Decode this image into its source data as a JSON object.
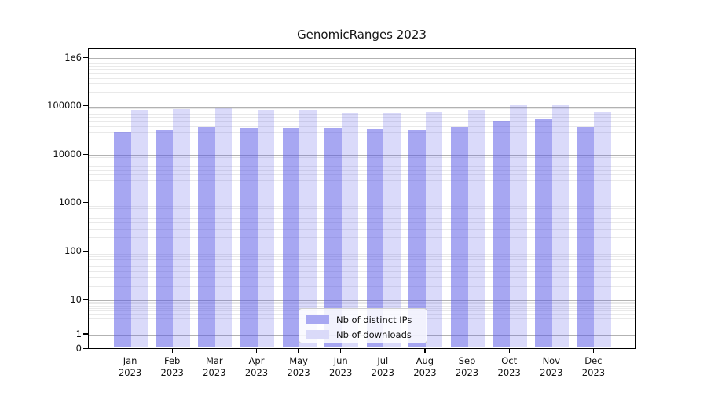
{
  "title": "GenomicRanges 2023",
  "chart_data": {
    "type": "bar",
    "title": "GenomicRanges 2023",
    "xlabel": "",
    "ylabel": "",
    "yscale": "symlog",
    "ylim": [
      0,
      1500000
    ],
    "grid": true,
    "legend_position": "lower center",
    "yticks": [
      {
        "label": "1e6",
        "value": 1000000
      },
      {
        "label": "100000",
        "value": 100000
      },
      {
        "label": "10000",
        "value": 10000
      },
      {
        "label": "1000",
        "value": 1000
      },
      {
        "label": "100",
        "value": 100
      },
      {
        "label": "10",
        "value": 10
      },
      {
        "label": "1",
        "value": 1
      },
      {
        "label": "0",
        "value": 0
      }
    ],
    "xticks": [
      {
        "month": "Jan",
        "year": "2023"
      },
      {
        "month": "Feb",
        "year": "2023"
      },
      {
        "month": "Mar",
        "year": "2023"
      },
      {
        "month": "Apr",
        "year": "2023"
      },
      {
        "month": "May",
        "year": "2023"
      },
      {
        "month": "Jun",
        "year": "2023"
      },
      {
        "month": "Jul",
        "year": "2023"
      },
      {
        "month": "Aug",
        "year": "2023"
      },
      {
        "month": "Sep",
        "year": "2023"
      },
      {
        "month": "Oct",
        "year": "2023"
      },
      {
        "month": "Nov",
        "year": "2023"
      },
      {
        "month": "Dec",
        "year": "2023"
      }
    ],
    "series": [
      {
        "name": "Nb of distinct IPs",
        "color": "rgba(87,87,230,0.52)",
        "swatch": "#a8a8f2",
        "values": [
          30000,
          32500,
          37000,
          35800,
          35900,
          35900,
          35300,
          33500,
          38700,
          50500,
          53600,
          38000
        ]
      },
      {
        "name": "Nb of downloads",
        "color": "rgba(87,87,230,0.22)",
        "swatch": "#dadaf9",
        "values": [
          84000,
          88000,
          96000,
          86000,
          84000,
          73000,
          73000,
          79000,
          85000,
          107000,
          111000,
          77000
        ]
      }
    ]
  }
}
